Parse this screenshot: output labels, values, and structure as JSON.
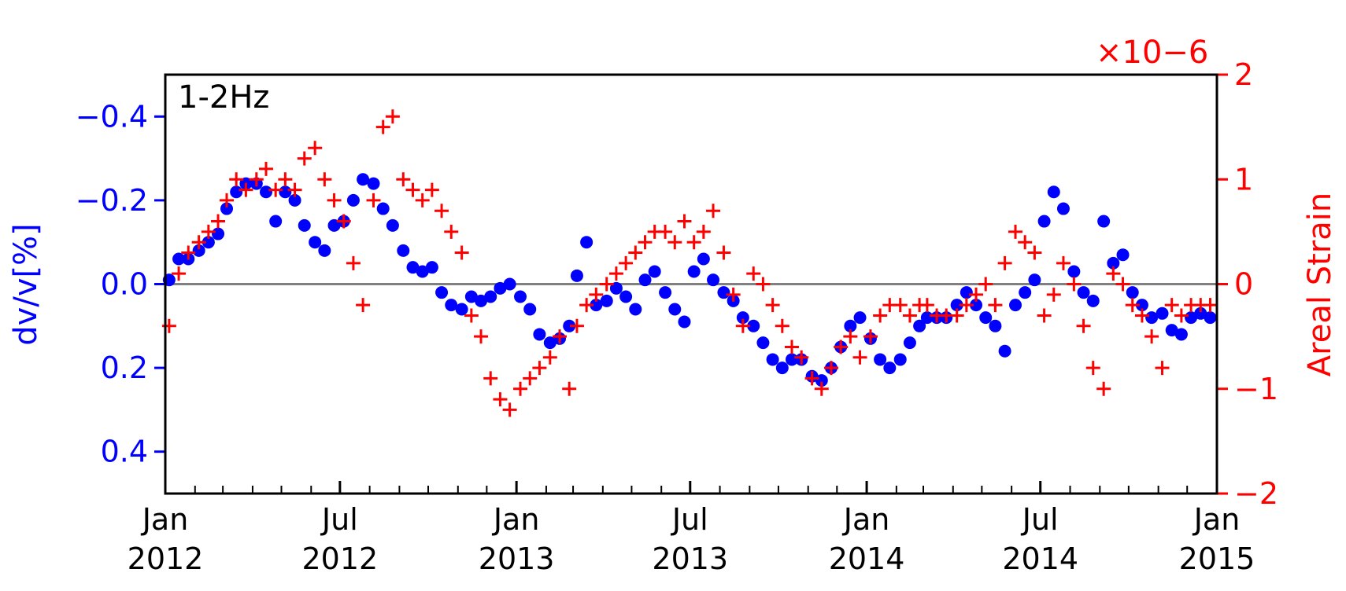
{
  "chart_data": {
    "type": "scatter",
    "panel_label": "1-2Hz",
    "x_range": [
      "2012-01-01",
      "2015-01-01"
    ],
    "x_ticks": [
      {
        "month": "Jan",
        "year": "2012",
        "date": "2012-01-01"
      },
      {
        "month": "Jul",
        "year": "2012",
        "date": "2012-07-01"
      },
      {
        "month": "Jan",
        "year": "2013",
        "date": "2013-01-01"
      },
      {
        "month": "Jul",
        "year": "2013",
        "date": "2013-07-01"
      },
      {
        "month": "Jan",
        "year": "2014",
        "date": "2014-01-01"
      },
      {
        "month": "Jul",
        "year": "2014",
        "date": "2014-07-01"
      },
      {
        "month": "Jan",
        "year": "2015",
        "date": "2015-01-01"
      }
    ],
    "left_axis": {
      "label": "dv/v[%]",
      "color": "#0000ff",
      "range": [
        -0.5,
        0.5
      ],
      "inverted": true,
      "ticks": [
        -0.4,
        -0.2,
        0.0,
        0.2,
        0.4
      ],
      "tick_labels": [
        "−0.4",
        "−0.2",
        "0.0",
        "0.2",
        "0.4"
      ]
    },
    "right_axis": {
      "label": "Areal Strain",
      "color": "#ff0000",
      "range": [
        -2,
        2
      ],
      "multiplier": "×10−6",
      "ticks": [
        2,
        1,
        0,
        -1,
        -2
      ],
      "tick_labels": [
        "2",
        "1",
        "0",
        "−1",
        "−2"
      ]
    },
    "zero_line_color": "#808080",
    "grid": false,
    "series": [
      {
        "axis": "left",
        "marker": "circle",
        "color": "#0000ff",
        "x": [
          "2012-01-05",
          "2012-01-15",
          "2012-01-25",
          "2012-02-05",
          "2012-02-15",
          "2012-02-25",
          "2012-03-05",
          "2012-03-15",
          "2012-03-25",
          "2012-04-05",
          "2012-04-15",
          "2012-04-25",
          "2012-05-05",
          "2012-05-15",
          "2012-05-25",
          "2012-06-05",
          "2012-06-15",
          "2012-06-25",
          "2012-07-05",
          "2012-07-15",
          "2012-07-25",
          "2012-08-05",
          "2012-08-15",
          "2012-08-25",
          "2012-09-05",
          "2012-09-15",
          "2012-09-25",
          "2012-10-05",
          "2012-10-15",
          "2012-10-25",
          "2012-11-05",
          "2012-11-15",
          "2012-11-25",
          "2012-12-05",
          "2012-12-15",
          "2012-12-25",
          "2013-01-05",
          "2013-01-15",
          "2013-01-25",
          "2013-02-05",
          "2013-02-15",
          "2013-02-25",
          "2013-03-05",
          "2013-03-15",
          "2013-03-25",
          "2013-04-05",
          "2013-04-15",
          "2013-04-25",
          "2013-05-05",
          "2013-05-15",
          "2013-05-25",
          "2013-06-05",
          "2013-06-15",
          "2013-06-25",
          "2013-07-05",
          "2013-07-15",
          "2013-07-25",
          "2013-08-05",
          "2013-08-15",
          "2013-08-25",
          "2013-09-05",
          "2013-09-15",
          "2013-09-25",
          "2013-10-05",
          "2013-10-15",
          "2013-10-25",
          "2013-11-05",
          "2013-11-15",
          "2013-11-25",
          "2013-12-05",
          "2013-12-15",
          "2013-12-25",
          "2014-01-05",
          "2014-01-15",
          "2014-01-25",
          "2014-02-05",
          "2014-02-15",
          "2014-02-25",
          "2014-03-05",
          "2014-03-15",
          "2014-03-25",
          "2014-04-05",
          "2014-04-15",
          "2014-04-25",
          "2014-05-05",
          "2014-05-15",
          "2014-05-25",
          "2014-06-05",
          "2014-06-15",
          "2014-06-25",
          "2014-07-05",
          "2014-07-15",
          "2014-07-25",
          "2014-08-05",
          "2014-08-15",
          "2014-08-25",
          "2014-09-05",
          "2014-09-15",
          "2014-09-25",
          "2014-10-05",
          "2014-10-15",
          "2014-10-25",
          "2014-11-05",
          "2014-11-15",
          "2014-11-25",
          "2014-12-05",
          "2014-12-15",
          "2014-12-25"
        ],
        "y": [
          -0.01,
          -0.06,
          -0.06,
          -0.08,
          -0.1,
          -0.12,
          -0.18,
          -0.22,
          -0.24,
          -0.24,
          -0.22,
          -0.15,
          -0.22,
          -0.2,
          -0.14,
          -0.1,
          -0.08,
          -0.14,
          -0.15,
          -0.2,
          -0.25,
          -0.24,
          -0.18,
          -0.14,
          -0.08,
          -0.04,
          -0.03,
          -0.04,
          0.02,
          0.05,
          0.06,
          0.03,
          0.04,
          0.03,
          0.01,
          0.0,
          0.03,
          0.06,
          0.12,
          0.14,
          0.13,
          0.1,
          -0.02,
          -0.1,
          0.05,
          0.04,
          0.01,
          0.03,
          0.06,
          -0.01,
          -0.03,
          0.02,
          0.06,
          0.09,
          -0.03,
          -0.06,
          -0.01,
          0.02,
          0.04,
          0.08,
          0.1,
          0.14,
          0.18,
          0.2,
          0.18,
          0.18,
          0.22,
          0.23,
          0.2,
          0.15,
          0.1,
          0.08,
          0.13,
          0.18,
          0.2,
          0.18,
          0.14,
          0.1,
          0.08,
          0.08,
          0.08,
          0.05,
          0.02,
          0.05,
          0.08,
          0.1,
          0.16,
          0.05,
          0.02,
          -0.01,
          -0.15,
          -0.22,
          -0.18,
          -0.03,
          0.02,
          0.04,
          -0.15,
          -0.05,
          -0.07,
          0.02,
          0.05,
          0.08,
          0.07,
          0.11,
          0.12,
          0.08,
          0.07,
          0.08
        ]
      },
      {
        "axis": "right",
        "marker": "plus",
        "color": "#ff0000",
        "x": [
          "2012-01-05",
          "2012-01-15",
          "2012-01-25",
          "2012-02-05",
          "2012-02-15",
          "2012-02-25",
          "2012-03-05",
          "2012-03-15",
          "2012-03-25",
          "2012-04-05",
          "2012-04-15",
          "2012-04-25",
          "2012-05-05",
          "2012-05-15",
          "2012-05-25",
          "2012-06-05",
          "2012-06-15",
          "2012-06-25",
          "2012-07-05",
          "2012-07-15",
          "2012-07-25",
          "2012-08-05",
          "2012-08-15",
          "2012-08-25",
          "2012-09-05",
          "2012-09-15",
          "2012-09-25",
          "2012-10-05",
          "2012-10-15",
          "2012-10-25",
          "2012-11-05",
          "2012-11-15",
          "2012-11-25",
          "2012-12-05",
          "2012-12-15",
          "2012-12-25",
          "2013-01-05",
          "2013-01-15",
          "2013-01-25",
          "2013-02-05",
          "2013-02-15",
          "2013-02-25",
          "2013-03-05",
          "2013-03-15",
          "2013-03-25",
          "2013-04-05",
          "2013-04-15",
          "2013-04-25",
          "2013-05-05",
          "2013-05-15",
          "2013-05-25",
          "2013-06-05",
          "2013-06-15",
          "2013-06-25",
          "2013-07-05",
          "2013-07-15",
          "2013-07-25",
          "2013-08-05",
          "2013-08-15",
          "2013-08-25",
          "2013-09-05",
          "2013-09-15",
          "2013-09-25",
          "2013-10-05",
          "2013-10-15",
          "2013-10-25",
          "2013-11-05",
          "2013-11-15",
          "2013-11-25",
          "2013-12-05",
          "2013-12-15",
          "2013-12-25",
          "2014-01-05",
          "2014-01-15",
          "2014-01-25",
          "2014-02-05",
          "2014-02-15",
          "2014-02-25",
          "2014-03-05",
          "2014-03-15",
          "2014-03-25",
          "2014-04-05",
          "2014-04-15",
          "2014-04-25",
          "2014-05-05",
          "2014-05-15",
          "2014-05-25",
          "2014-06-05",
          "2014-06-15",
          "2014-06-25",
          "2014-07-05",
          "2014-07-15",
          "2014-07-25",
          "2014-08-05",
          "2014-08-15",
          "2014-08-25",
          "2014-09-05",
          "2014-09-15",
          "2014-09-25",
          "2014-10-05",
          "2014-10-15",
          "2014-10-25",
          "2014-11-05",
          "2014-11-15",
          "2014-11-25",
          "2014-12-05",
          "2014-12-15",
          "2014-12-25"
        ],
        "y": [
          -0.4,
          0.1,
          0.3,
          0.4,
          0.5,
          0.6,
          0.8,
          1.0,
          0.9,
          1.0,
          1.1,
          0.9,
          1.0,
          0.9,
          1.2,
          1.3,
          1.0,
          0.8,
          0.6,
          0.2,
          -0.2,
          0.8,
          1.5,
          1.6,
          1.0,
          0.9,
          0.8,
          0.9,
          0.7,
          0.5,
          0.3,
          -0.3,
          -0.5,
          -0.9,
          -1.1,
          -1.2,
          -1.0,
          -0.9,
          -0.8,
          -0.7,
          -0.5,
          -1.0,
          -0.4,
          -0.2,
          -0.1,
          0.0,
          0.1,
          0.2,
          0.3,
          0.4,
          0.5,
          0.5,
          0.4,
          0.6,
          0.4,
          0.5,
          0.7,
          0.3,
          -0.1,
          -0.4,
          0.1,
          0.0,
          -0.2,
          -0.4,
          -0.6,
          -0.7,
          -0.9,
          -1.0,
          -0.8,
          -0.6,
          -0.5,
          -0.7,
          -0.5,
          -0.3,
          -0.2,
          -0.2,
          -0.3,
          -0.2,
          -0.2,
          -0.3,
          -0.3,
          -0.3,
          -0.2,
          -0.1,
          0.0,
          -0.2,
          0.2,
          0.5,
          0.4,
          0.3,
          -0.3,
          -0.1,
          0.2,
          0.0,
          -0.4,
          -0.8,
          -1.0,
          0.1,
          0.0,
          -0.2,
          -0.3,
          -0.5,
          -0.8,
          -0.2,
          -0.3,
          -0.2,
          -0.2,
          -0.2
        ]
      }
    ]
  }
}
